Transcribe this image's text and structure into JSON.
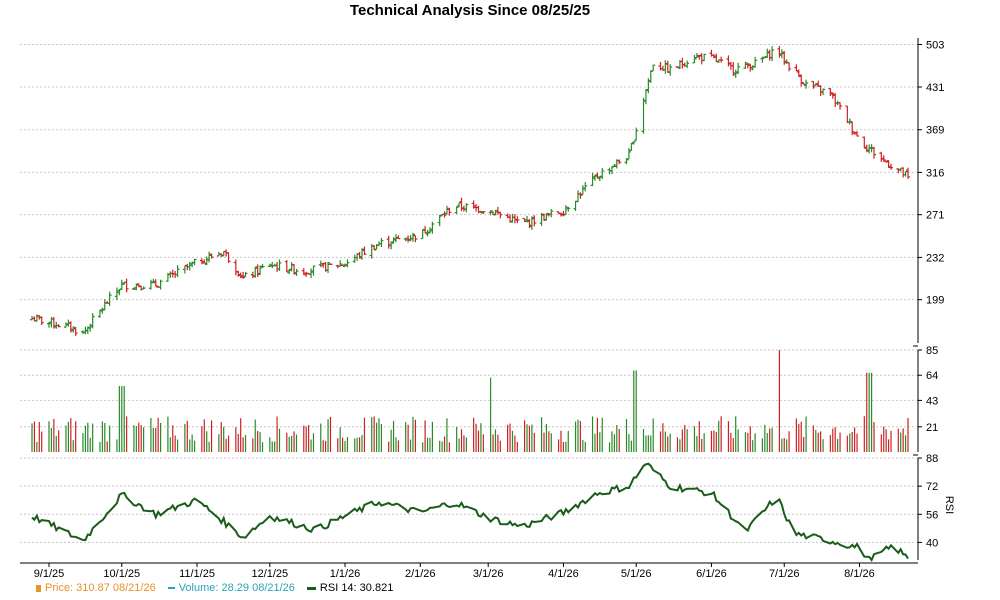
{
  "chart_data": {
    "type": "ohlc",
    "title": "Technical Analysis Since 08/25/25",
    "x_axis": {
      "tick_labels": [
        "9/1/25",
        "10/1/25",
        "11/1/25",
        "12/1/25",
        "1/1/26",
        "2/1/26",
        "3/1/26",
        "4/1/26",
        "5/1/26",
        "6/1/26",
        "7/1/26",
        "8/1/26"
      ]
    },
    "price_panel": {
      "y_ticks": [
        199,
        232,
        271,
        316,
        369,
        431,
        503
      ],
      "scale": "log",
      "ylim": [
        170,
        515
      ],
      "grid": true,
      "series_key_points": [
        {
          "x": "2025-08-25",
          "close": 186
        },
        {
          "x": "2025-09-10",
          "close": 180
        },
        {
          "x": "2025-09-15",
          "close": 176
        },
        {
          "x": "2025-10-01",
          "close": 210
        },
        {
          "x": "2025-10-15",
          "close": 210
        },
        {
          "x": "2025-11-01",
          "close": 228
        },
        {
          "x": "2025-11-12",
          "close": 237
        },
        {
          "x": "2025-11-20",
          "close": 215
        },
        {
          "x": "2025-12-01",
          "close": 226
        },
        {
          "x": "2025-12-15",
          "close": 221
        },
        {
          "x": "2026-01-01",
          "close": 227
        },
        {
          "x": "2026-01-15",
          "close": 244
        },
        {
          "x": "2026-02-01",
          "close": 252
        },
        {
          "x": "2026-02-15",
          "close": 280
        },
        {
          "x": "2026-03-01",
          "close": 276
        },
        {
          "x": "2026-03-15",
          "close": 262
        },
        {
          "x": "2026-04-01",
          "close": 275
        },
        {
          "x": "2026-04-15",
          "close": 312
        },
        {
          "x": "2026-04-28",
          "close": 336
        },
        {
          "x": "2026-05-01",
          "close": 370
        },
        {
          "x": "2026-05-08",
          "close": 470
        },
        {
          "x": "2026-05-15",
          "close": 458
        },
        {
          "x": "2026-05-25",
          "close": 482
        },
        {
          "x": "2026-06-01",
          "close": 478
        },
        {
          "x": "2026-06-10",
          "close": 460
        },
        {
          "x": "2026-06-20",
          "close": 470
        },
        {
          "x": "2026-06-28",
          "close": 497
        },
        {
          "x": "2026-07-01",
          "close": 475
        },
        {
          "x": "2026-07-10",
          "close": 435
        },
        {
          "x": "2026-07-20",
          "close": 420
        },
        {
          "x": "2026-08-01",
          "close": 355
        },
        {
          "x": "2026-08-10",
          "close": 332
        },
        {
          "x": "2026-08-21",
          "close": 310.87
        }
      ]
    },
    "volume_panel": {
      "y_ticks": [
        21,
        43,
        64,
        85
      ],
      "ylim": [
        0,
        85
      ],
      "spikes": [
        {
          "x": "2025-10-01",
          "value": 55
        },
        {
          "x": "2026-03-01",
          "value": 62
        },
        {
          "x": "2026-05-01",
          "value": 68
        },
        {
          "x": "2026-06-28",
          "value": 85
        },
        {
          "x": "2026-08-05",
          "value": 66
        }
      ]
    },
    "rsi_panel": {
      "y_ticks": [
        40,
        56,
        72,
        88
      ],
      "ylabel": "RSI",
      "ylim": [
        30,
        88
      ],
      "values": [
        {
          "x": "2025-08-25",
          "value": 55
        },
        {
          "x": "2025-09-15",
          "value": 41
        },
        {
          "x": "2025-10-01",
          "value": 67
        },
        {
          "x": "2025-10-15",
          "value": 56
        },
        {
          "x": "2025-11-01",
          "value": 64
        },
        {
          "x": "2025-11-20",
          "value": 43
        },
        {
          "x": "2025-12-01",
          "value": 55
        },
        {
          "x": "2025-12-20",
          "value": 47
        },
        {
          "x": "2026-01-01",
          "value": 55
        },
        {
          "x": "2026-01-15",
          "value": 63
        },
        {
          "x": "2026-02-01",
          "value": 57
        },
        {
          "x": "2026-02-15",
          "value": 63
        },
        {
          "x": "2026-03-01",
          "value": 54
        },
        {
          "x": "2026-03-15",
          "value": 49
        },
        {
          "x": "2026-04-01",
          "value": 57
        },
        {
          "x": "2026-04-15",
          "value": 68
        },
        {
          "x": "2026-04-28",
          "value": 72
        },
        {
          "x": "2026-05-05",
          "value": 85
        },
        {
          "x": "2026-05-15",
          "value": 72
        },
        {
          "x": "2026-06-01",
          "value": 68
        },
        {
          "x": "2026-06-15",
          "value": 46
        },
        {
          "x": "2026-06-28",
          "value": 66
        },
        {
          "x": "2026-07-05",
          "value": 45
        },
        {
          "x": "2026-07-20",
          "value": 41
        },
        {
          "x": "2026-08-01",
          "value": 37
        },
        {
          "x": "2026-08-05",
          "value": 30
        },
        {
          "x": "2026-08-15",
          "value": 38
        },
        {
          "x": "2026-08-21",
          "value": 30.821
        }
      ]
    },
    "colors": {
      "up": "#2a8a2a",
      "down": "#cc2222",
      "rsi": "#1a5c1a",
      "grid": "#c8c8c8"
    }
  },
  "legend": {
    "price": "Price: 310.87  08/21/26",
    "volume": "Volume: 28.29  08/21/26",
    "rsi": "RSI 14: 30.821"
  }
}
